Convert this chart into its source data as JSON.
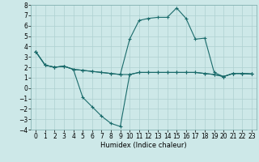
{
  "xlabel": "Humidex (Indice chaleur)",
  "x": [
    0,
    1,
    2,
    3,
    4,
    5,
    6,
    7,
    8,
    9,
    10,
    11,
    12,
    13,
    14,
    15,
    16,
    17,
    18,
    19,
    20,
    21,
    22,
    23
  ],
  "line1_dip": [
    3.5,
    2.2,
    2.0,
    2.1,
    1.8,
    -0.9,
    -1.8,
    -2.7,
    -3.4,
    -3.7,
    1.3,
    1.5,
    1.5,
    1.5,
    1.5,
    1.5,
    1.5,
    1.5,
    1.4,
    1.3,
    1.1,
    1.4,
    1.4,
    1.35
  ],
  "line2_peak": [
    3.5,
    2.2,
    2.0,
    2.1,
    1.8,
    1.7,
    1.6,
    1.5,
    1.4,
    1.3,
    4.7,
    6.5,
    6.7,
    6.8,
    6.8,
    7.7,
    6.7,
    4.7,
    4.8,
    1.5,
    1.1,
    1.4,
    1.4,
    1.35
  ],
  "line3_flat": [
    3.5,
    2.2,
    2.0,
    2.1,
    1.8,
    1.7,
    1.6,
    1.5,
    1.4,
    1.3,
    1.3,
    1.5,
    1.5,
    1.5,
    1.5,
    1.5,
    1.5,
    1.5,
    1.4,
    1.3,
    1.1,
    1.4,
    1.4,
    1.35
  ],
  "line_color": "#1a6b6b",
  "bg_color": "#cde8e8",
  "grid_color": "#aed0d0",
  "ylim": [
    -4,
    8
  ],
  "xlim": [
    -0.5,
    23.5
  ],
  "yticks": [
    -4,
    -3,
    -2,
    -1,
    0,
    1,
    2,
    3,
    4,
    5,
    6,
    7,
    8
  ],
  "xticks": [
    0,
    1,
    2,
    3,
    4,
    5,
    6,
    7,
    8,
    9,
    10,
    11,
    12,
    13,
    14,
    15,
    16,
    17,
    18,
    19,
    20,
    21,
    22,
    23
  ],
  "xlabel_fontsize": 6,
  "tick_fontsize": 5.5
}
